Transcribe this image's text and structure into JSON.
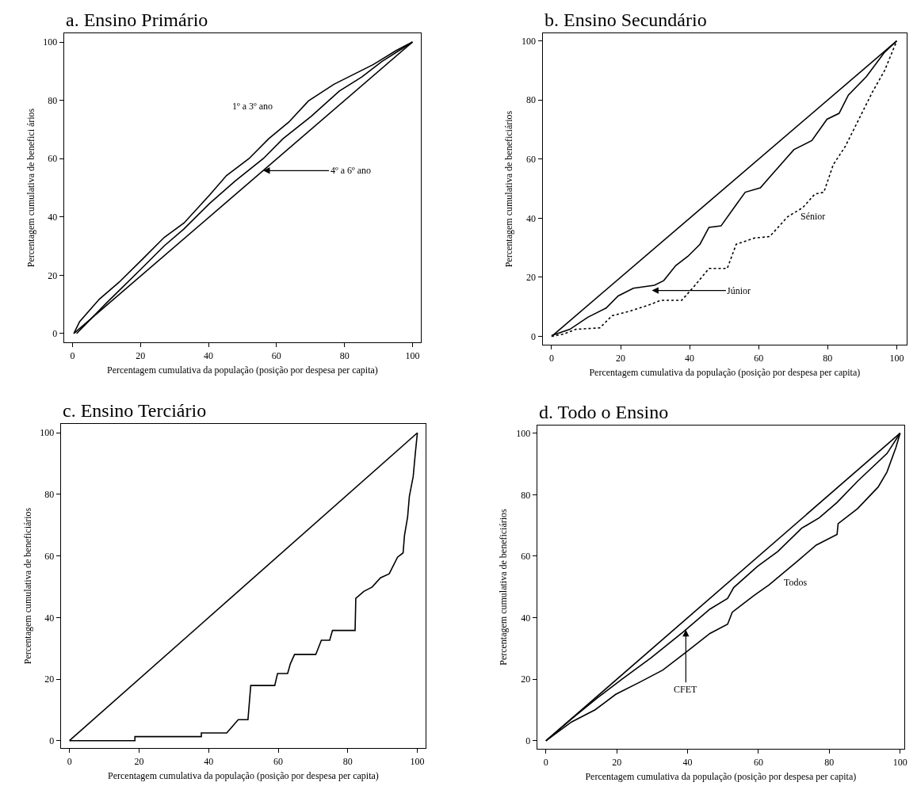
{
  "chart_data": [
    {
      "type": "line",
      "title": "a. Ensino Primário",
      "xlabel": "Percentagem cumulativa da população (posição por despesa per capita)",
      "ylabel": "Percentagem cumulativa de benefici ários",
      "xlim": [
        -2.5,
        102.5
      ],
      "ylim": [
        -3,
        103
      ],
      "xticks": [
        0,
        20,
        40,
        60,
        80,
        100
      ],
      "yticks": [
        0,
        20,
        40,
        60,
        80,
        100
      ],
      "series": [
        {
          "color": "#000000",
          "x": [
            0.4,
            2.1,
            7.9,
            13.7,
            20.4,
            27,
            32.8,
            40.3,
            45.3,
            51.9,
            57.7,
            63.6,
            69.4,
            76.9,
            82.7,
            88.5,
            95.2,
            100
          ],
          "values": [
            0,
            4.1,
            11.8,
            17.6,
            25.3,
            33,
            37.9,
            47.5,
            54.2,
            60,
            66.8,
            72.5,
            79.8,
            85.5,
            88.9,
            92.3,
            97.1,
            100
          ]
        },
        {
          "color": "#000000",
          "x": [
            1.2,
            10,
            20.4,
            27,
            32.8,
            40.3,
            47.8,
            56.1,
            61.9,
            70.2,
            78.5,
            85.1,
            91,
            100
          ],
          "values": [
            0,
            10.5,
            22.4,
            30.1,
            35.9,
            44.6,
            52.3,
            60,
            66.8,
            74.5,
            83.2,
            88,
            93.3,
            100
          ]
        },
        {
          "color": "#000000",
          "x": [
            0.4,
            100
          ],
          "values": [
            0,
            100
          ]
        }
      ],
      "annotations": [
        "1º a 3º ano",
        {
          "text": "4º a 6º ano",
          "x": 56.1,
          "y": 55.9
        }
      ]
    },
    {
      "type": "line",
      "title": "b. Ensino Secundário",
      "xlabel": "Percentagem cumulativa da população (posição por despesa per capita)",
      "ylabel": "Percentagem cumulativa de beneficiários",
      "xlim": [
        -2.6,
        102.9
      ],
      "ylim": [
        -2.8,
        102.6
      ],
      "xticks": [
        0,
        20,
        40,
        60,
        80,
        100
      ],
      "yticks": [
        0,
        20,
        40,
        60,
        80,
        100
      ],
      "series": [
        {
          "color": "#000000",
          "x": [
            0,
            100
          ],
          "values": [
            0,
            100
          ]
        },
        {
          "color": "#000000",
          "x": [
            0,
            5.3,
            10.5,
            15.8,
            19.3,
            23.7,
            29.8,
            32.5,
            36,
            39.5,
            43,
            45.6,
            49.1,
            53.5,
            56.1,
            60.5,
            63.2,
            67.5,
            70.2,
            75.4,
            79.8,
            83.3,
            86,
            91.2,
            96.5,
            100
          ],
          "values": [
            0.3,
            2.4,
            6.5,
            9.6,
            13.7,
            16.3,
            17.3,
            18.9,
            24,
            27.1,
            31.2,
            36.9,
            37.4,
            44.6,
            48.8,
            50.3,
            53.9,
            59.6,
            63.2,
            66.3,
            73.5,
            75.5,
            81.7,
            87.9,
            96.2,
            100
          ]
        },
        {
          "color": "#000000",
          "line_style": "dotted",
          "x": [
            0,
            3.5,
            7,
            14,
            17.5,
            22.8,
            28.1,
            31.6,
            37.7,
            41.2,
            45.6,
            50.9,
            53.5,
            58.8,
            63.2,
            68.4,
            72.8,
            76.3,
            78.9,
            81.6,
            85.1,
            88.6,
            93,
            96.5,
            100
          ],
          "values": [
            0,
            0.8,
            2.4,
            2.9,
            7,
            8.6,
            10.6,
            12.2,
            12.2,
            16.8,
            23,
            23,
            31.2,
            33.3,
            33.8,
            40.5,
            43.6,
            48.2,
            48.8,
            58.1,
            64.3,
            72.5,
            82.8,
            90,
            100
          ]
        }
      ],
      "annotations": [
        "Júnior",
        "Sénior"
      ]
    },
    {
      "type": "line",
      "title": "c. Ensino Terciário",
      "xlabel": "Percentagem cumulativa da população (posição por despesa per capita)",
      "ylabel": "Percentagem cumulativa de beneficiários",
      "xlim": [
        -2.5,
        102.4
      ],
      "ylim": [
        -2.4,
        102.9
      ],
      "xticks": [
        0,
        20,
        40,
        60,
        80,
        100
      ],
      "yticks": [
        0,
        20,
        40,
        60,
        80,
        100
      ],
      "series": [
        {
          "color": "#000000",
          "x": [
            0,
            100
          ],
          "values": [
            0,
            100
          ]
        },
        {
          "color": "#000000",
          "x": [
            0,
            18.8,
            18.8,
            37.9,
            37.9,
            45.2,
            48.5,
            51.3,
            52.1,
            59,
            59.8,
            62.7,
            63.5,
            64.7,
            70.8,
            72.4,
            74.8,
            75.6,
            82.1,
            82.3,
            84.6,
            87,
            89.4,
            91.9,
            94.3,
            95.9,
            96.3,
            97.2,
            97.7,
            98.8,
            99.4,
            100
          ],
          "values": [
            0,
            0,
            1.3,
            1.3,
            2.5,
            2.5,
            6.8,
            6.8,
            17.9,
            17.9,
            21.8,
            21.8,
            25,
            28,
            28,
            32.6,
            32.6,
            35.8,
            35.8,
            46.2,
            48.5,
            49.9,
            52.9,
            54.2,
            59.6,
            61,
            66.7,
            72.7,
            79.4,
            85.8,
            93.2,
            100
          ]
        }
      ]
    },
    {
      "type": "line",
      "title": "d. Todo o Ensino",
      "xlabel": "Percentagem cumulativa da população (posição por despesa per capita)",
      "ylabel": "Percentagem cumulativa de beneficiários",
      "xlim": [
        -2.5,
        101.2
      ],
      "ylim": [
        -2.6,
        102.5
      ],
      "xticks": [
        0,
        20,
        40,
        60,
        80,
        100
      ],
      "yticks": [
        0,
        20,
        40,
        60,
        80,
        100
      ],
      "series": [
        {
          "color": "#000000",
          "x": [
            0,
            100
          ],
          "values": [
            0,
            100
          ]
        },
        {
          "color": "#000000",
          "x": [
            0,
            7.2,
            14.7,
            21.4,
            29.7,
            38.8,
            46.3,
            51.3,
            53,
            59.7,
            65.5,
            72.2,
            77.2,
            82.2,
            88,
            96.3,
            100
          ],
          "values": [
            0,
            7.1,
            14.1,
            20,
            27,
            35.4,
            42.8,
            46.3,
            49.8,
            56.7,
            61.6,
            69.1,
            72.5,
            77.5,
            84.4,
            93.4,
            100
          ]
        },
        {
          "color": "#000000",
          "x": [
            0,
            7.2,
            13.9,
            19.7,
            26.4,
            33,
            39.7,
            46.3,
            51.3,
            52.6,
            58.8,
            63,
            71.3,
            76.3,
            82.2,
            82.5,
            88,
            93.8,
            96.3,
            98.8,
            100
          ],
          "values": [
            0,
            6.1,
            10.1,
            15.1,
            19,
            23,
            28.9,
            34.9,
            37.9,
            41.8,
            47.3,
            50.7,
            58.7,
            63.6,
            67.1,
            70.6,
            75.5,
            82.5,
            87.4,
            95.3,
            100
          ]
        }
      ],
      "annotations": [
        {
          "text": "CFET",
          "x": 39.5,
          "y": 36.1
        },
        "Todos"
      ]
    }
  ]
}
